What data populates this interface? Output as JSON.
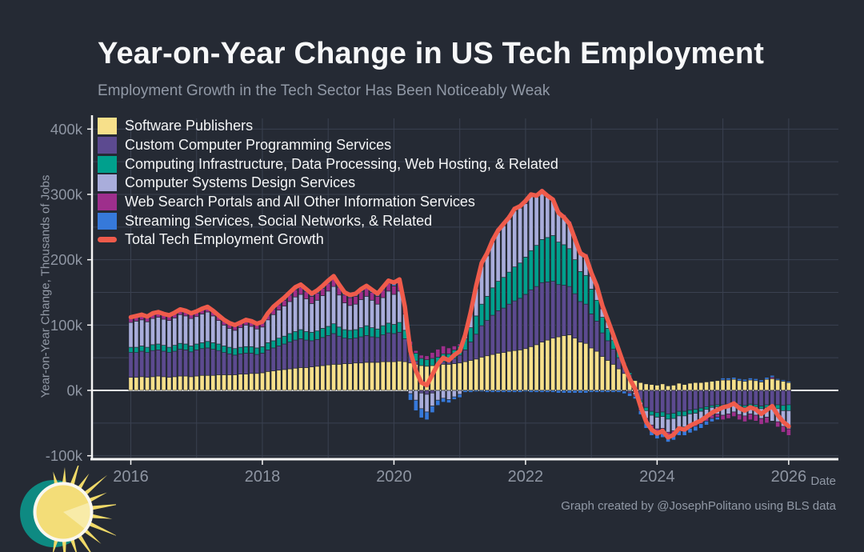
{
  "header": {
    "title": "Year-on-Year Change in US Tech Employment",
    "subtitle": "Employment Growth in the Tech Sector Has Been Noticeably Weak"
  },
  "axes": {
    "y_label": "Year-on-Year Change, Thousands of Jobs",
    "x_label": "Date",
    "y_ticks": [
      "400k",
      "300k",
      "200k",
      "100k",
      "0k",
      "-100k"
    ],
    "y_tick_values": [
      400,
      300,
      200,
      100,
      0,
      -100
    ],
    "x_ticks": [
      "2016",
      "2018",
      "2020",
      "2022",
      "2024",
      "2026"
    ],
    "x_tick_years": [
      2016,
      2018,
      2020,
      2022,
      2024,
      2026
    ]
  },
  "legend": [
    {
      "label": "Software Publishers",
      "color": "#F7E08A",
      "type": "box"
    },
    {
      "label": "Custom Computer Programming Services",
      "color": "#5C4A90",
      "type": "box"
    },
    {
      "label": "Computing Infrastructure, Data Processing, Web Hosting, & Related",
      "color": "#00A08D",
      "type": "box"
    },
    {
      "label": "Computer Systems Design Services",
      "color": "#A9ADDB",
      "type": "box"
    },
    {
      "label": "Web Search Portals and All Other Information Services",
      "color": "#9E2F8C",
      "type": "box"
    },
    {
      "label": "Streaming Services, Social Networks, & Related",
      "color": "#3679DA",
      "type": "box"
    },
    {
      "label": "Total Tech Employment Growth",
      "color": "#EF5B4B",
      "type": "line"
    }
  ],
  "credit": "Graph created by @JosephPolitano using BLS data",
  "logo_name": "apricitas-sun-logo",
  "colors": {
    "background": "#252a34",
    "grid": "#3a4150",
    "axis": "#f5f5f5",
    "zero_line": "#f5f5f5",
    "tick_text": "#8e95a2",
    "total_line": "#EF5B4B",
    "bar_outline": "#262b36",
    "logo_teal": "#0E8A82",
    "logo_yellow": "#F3DD78",
    "logo_ray": "#F0D968",
    "logo_ring": "#FAF7EF",
    "logo_wedge": "#F8EBA8"
  },
  "chart_data": {
    "type": "bar",
    "subtype": "stacked-bar-with-line",
    "frequency": "monthly",
    "start": "2016-01",
    "end": "2026-01",
    "title": "Year-on-Year Change in US Tech Employment",
    "xlabel": "Date",
    "ylabel": "Year-on-Year Change, Thousands of Jobs",
    "unit": "thousands of jobs",
    "ylim": [
      -105,
      425
    ],
    "grid": true,
    "grid_years": [
      2016,
      2017,
      2018,
      2019,
      2020,
      2021,
      2022,
      2023,
      2024,
      2025,
      2026
    ],
    "legend_position": "top-left",
    "series": [
      {
        "name": "Software Publishers",
        "color": "#F7E08A",
        "values": [
          20,
          20,
          21,
          20,
          21,
          22,
          21,
          20,
          21,
          22,
          22,
          21,
          22,
          23,
          23,
          23,
          24,
          24,
          24,
          24,
          25,
          25,
          26,
          26,
          27,
          29,
          30,
          31,
          32,
          33,
          34,
          35,
          35,
          36,
          37,
          38,
          39,
          40,
          40,
          41,
          41,
          42,
          42,
          43,
          43,
          43,
          44,
          44,
          44,
          45,
          44,
          42,
          40,
          38,
          37,
          38,
          39,
          40,
          40,
          41,
          42,
          44,
          46,
          48,
          51,
          53,
          55,
          57,
          58,
          60,
          61,
          62,
          64,
          67,
          70,
          74,
          77,
          80,
          82,
          84,
          85,
          80,
          74,
          72,
          65,
          60,
          52,
          46,
          40,
          33,
          26,
          20,
          15,
          12,
          10,
          9,
          8,
          10,
          7,
          8,
          11,
          9,
          11,
          12,
          12,
          13,
          14,
          15,
          16,
          16,
          17,
          15,
          14,
          16,
          15,
          13,
          17,
          18,
          16,
          14,
          12
        ]
      },
      {
        "name": "Custom Computer Programming Services",
        "color": "#5C4A90",
        "values": [
          38,
          38,
          39,
          38,
          40,
          40,
          39,
          38,
          39,
          41,
          40,
          38,
          40,
          41,
          42,
          40,
          37,
          34,
          32,
          30,
          31,
          32,
          31,
          29,
          30,
          33,
          35,
          37,
          39,
          41,
          43,
          44,
          42,
          40,
          41,
          43,
          45,
          47,
          43,
          39,
          38,
          38,
          40,
          41,
          39,
          38,
          41,
          44,
          43,
          44,
          35,
          15,
          5,
          -4,
          -6,
          -4,
          0,
          4,
          4,
          8,
          12,
          18,
          28,
          38,
          48,
          54,
          60,
          65,
          68,
          72,
          76,
          79,
          83,
          87,
          89,
          91,
          89,
          87,
          80,
          77,
          74,
          68,
          62,
          60,
          52,
          46,
          36,
          30,
          23,
          17,
          10,
          4,
          -3,
          -15,
          -26,
          -32,
          -34,
          -33,
          -36,
          -35,
          -32,
          -32,
          -30,
          -29,
          -27,
          -25,
          -23,
          -22,
          -22,
          -21,
          -20,
          -22,
          -23,
          -21,
          -22,
          -24,
          -22,
          -23,
          -22,
          -23,
          -22
        ]
      },
      {
        "name": "Computing Infrastructure, Data Processing, Web Hosting, & Related",
        "color": "#00A08D",
        "values": [
          8,
          8,
          8,
          8,
          9,
          9,
          9,
          8,
          9,
          9,
          9,
          9,
          9,
          9,
          10,
          10,
          10,
          10,
          10,
          10,
          10,
          10,
          10,
          10,
          10,
          11,
          11,
          12,
          12,
          13,
          13,
          14,
          13,
          13,
          13,
          14,
          14,
          15,
          14,
          13,
          13,
          13,
          14,
          15,
          14,
          13,
          14,
          15,
          14,
          15,
          13,
          12,
          12,
          11,
          10,
          11,
          12,
          12,
          12,
          13,
          14,
          17,
          22,
          28,
          33,
          37,
          42,
          45,
          47,
          49,
          52,
          54,
          57,
          60,
          63,
          66,
          68,
          70,
          65,
          62,
          58,
          52,
          46,
          44,
          38,
          32,
          24,
          19,
          14,
          10,
          6,
          3,
          0,
          -3,
          -5,
          -6,
          -7,
          -7,
          -8,
          -8,
          -7,
          -7,
          -6,
          -6,
          -5,
          -4,
          -3,
          -3,
          -3,
          -3,
          -2,
          -3,
          -3,
          -3,
          -3,
          -4,
          -4,
          -5,
          -6,
          -8,
          -9
        ]
      },
      {
        "name": "Computer Systems Design Services",
        "color": "#A9ADDB",
        "values": [
          38,
          40,
          40,
          39,
          40,
          41,
          40,
          41,
          42,
          44,
          43,
          42,
          42,
          44,
          45,
          41,
          36,
          32,
          29,
          28,
          30,
          33,
          31,
          29,
          30,
          35,
          40,
          43,
          46,
          49,
          53,
          54,
          50,
          44,
          47,
          50,
          54,
          57,
          49,
          41,
          38,
          39,
          43,
          45,
          42,
          38,
          43,
          49,
          46,
          48,
          25,
          -5,
          -15,
          -24,
          -27,
          -20,
          -15,
          -12,
          -14,
          -10,
          -6,
          5,
          22,
          42,
          58,
          62,
          70,
          75,
          79,
          81,
          86,
          84,
          82,
          83,
          74,
          72,
          62,
          53,
          45,
          42,
          38,
          33,
          29,
          27,
          20,
          17,
          13,
          10,
          7,
          4,
          1,
          -2,
          -4,
          -8,
          -12,
          -15,
          -18,
          -18,
          -20,
          -19,
          -17,
          -17,
          -16,
          -15,
          -14,
          -13,
          -12,
          -11,
          -13,
          -12,
          -11,
          -12,
          -13,
          -12,
          -13,
          -15,
          -15,
          -19,
          -20,
          -24,
          -28
        ]
      },
      {
        "name": "Web Search Portals and All Other Information Services",
        "color": "#9E2F8C",
        "values": [
          6,
          6,
          6,
          6,
          6,
          6,
          6,
          6,
          6,
          6,
          6,
          6,
          6,
          6,
          6,
          6,
          6,
          6,
          6,
          6,
          6,
          6,
          6,
          6,
          6,
          7,
          8,
          8,
          9,
          10,
          11,
          11,
          11,
          11,
          11,
          11,
          12,
          12,
          12,
          12,
          12,
          12,
          12,
          12,
          12,
          12,
          12,
          12,
          13,
          13,
          10,
          6,
          4,
          5,
          6,
          9,
          12,
          12,
          9,
          6,
          3,
          4,
          5,
          6,
          7,
          7,
          6,
          6,
          6,
          6,
          6,
          6,
          6,
          6,
          5,
          5,
          5,
          5,
          4,
          4,
          4,
          3,
          3,
          6,
          8,
          8,
          8,
          6,
          4,
          1,
          -1,
          -2,
          -2,
          -5,
          -7,
          -8,
          -7,
          -7,
          -7,
          -7,
          -6,
          -6,
          -6,
          -5,
          -5,
          -5,
          -5,
          -5,
          -7,
          -7,
          -7,
          -8,
          -9,
          -9,
          -9,
          -9,
          -9,
          2,
          -8,
          -9,
          -10
        ]
      },
      {
        "name": "Streaming Services, Social Networks, & Related",
        "color": "#3679DA",
        "values": [
          2,
          2,
          2,
          2,
          2,
          2,
          2,
          2,
          2,
          2,
          2,
          2,
          2,
          2,
          2,
          2,
          2,
          2,
          2,
          2,
          2,
          2,
          2,
          2,
          2,
          3,
          4,
          4,
          4,
          4,
          4,
          4,
          4,
          4,
          4,
          4,
          4,
          4,
          4,
          4,
          4,
          4,
          4,
          4,
          4,
          4,
          4,
          4,
          5,
          5,
          1,
          -10,
          -16,
          -14,
          -12,
          -10,
          -8,
          -6,
          -5,
          -4,
          -5,
          -3,
          -3,
          -2,
          -2,
          -3,
          -3,
          -3,
          -3,
          -3,
          -3,
          -3,
          -2,
          -3,
          -3,
          -3,
          -3,
          -3,
          -4,
          -4,
          -4,
          -4,
          -4,
          -4,
          -3,
          -3,
          -3,
          -3,
          -3,
          -3,
          -4,
          -5,
          -4,
          -6,
          -8,
          -8,
          -8,
          -7,
          -8,
          -7,
          -7,
          -7,
          -7,
          -7,
          -7,
          -6,
          -5,
          -4,
          3,
          3,
          3,
          3,
          3,
          3,
          3,
          3,
          3,
          3,
          2,
          2,
          2
        ]
      }
    ],
    "total_series": {
      "name": "Total Tech Employment Growth",
      "color": "#EF5B4B",
      "values": [
        112,
        114,
        116,
        113,
        118,
        120,
        117,
        115,
        119,
        124,
        122,
        118,
        121,
        125,
        128,
        122,
        115,
        108,
        103,
        100,
        104,
        108,
        106,
        102,
        105,
        118,
        128,
        135,
        142,
        150,
        158,
        162,
        155,
        148,
        153,
        160,
        168,
        175,
        162,
        150,
        146,
        148,
        155,
        160,
        154,
        148,
        158,
        168,
        165,
        170,
        128,
        60,
        30,
        12,
        8,
        24,
        40,
        50,
        46,
        54,
        60,
        85,
        120,
        160,
        195,
        210,
        230,
        245,
        255,
        265,
        278,
        282,
        290,
        300,
        298,
        305,
        298,
        292,
        272,
        265,
        255,
        232,
        210,
        205,
        180,
        160,
        130,
        108,
        85,
        62,
        38,
        18,
        2,
        -25,
        -48,
        -60,
        -66,
        -62,
        -72,
        -68,
        -58,
        -60,
        -54,
        -50,
        -46,
        -40,
        -34,
        -30,
        -26,
        -24,
        -20,
        -27,
        -31,
        -26,
        -29,
        -36,
        -30,
        -24,
        -38,
        -48,
        -55
      ]
    }
  }
}
